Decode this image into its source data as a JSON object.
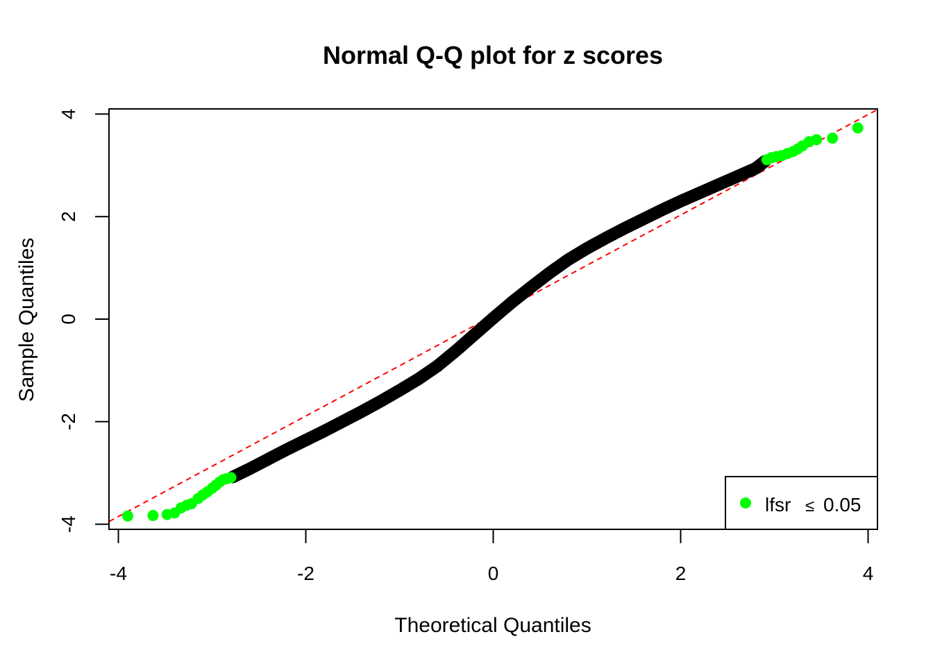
{
  "chart_data": {
    "type": "scatter",
    "title": "Normal Q-Q plot for z scores",
    "xlabel": "Theoretical Quantiles",
    "ylabel": "Sample Quantiles",
    "xlim": [
      -4.1,
      4.1
    ],
    "ylim": [
      -4.1,
      4.1
    ],
    "x_ticks": [
      -4,
      -2,
      0,
      2,
      4
    ],
    "y_ticks": [
      -4,
      -2,
      0,
      2,
      4
    ],
    "x_tick_labels": [
      "-4",
      "-2",
      "0",
      "2",
      "4"
    ],
    "y_tick_labels": [
      "-4",
      "-2",
      "0",
      "2",
      "4"
    ],
    "grid": false,
    "colors": {
      "points": "#000000",
      "highlight": "#00ff00",
      "reference_line": "#ff0000"
    },
    "reference_line": {
      "style": "dashed",
      "intercept": 0.07,
      "slope": 0.98
    },
    "sample_curve": [
      [
        -2.78,
        -3.08
      ],
      [
        -2.6,
        -2.92
      ],
      [
        -2.4,
        -2.73
      ],
      [
        -2.2,
        -2.54
      ],
      [
        -2.0,
        -2.36
      ],
      [
        -1.8,
        -2.18
      ],
      [
        -1.6,
        -1.99
      ],
      [
        -1.4,
        -1.8
      ],
      [
        -1.2,
        -1.6
      ],
      [
        -1.0,
        -1.39
      ],
      [
        -0.8,
        -1.17
      ],
      [
        -0.6,
        -0.92
      ],
      [
        -0.4,
        -0.62
      ],
      [
        -0.2,
        -0.3
      ],
      [
        0.0,
        0.02
      ],
      [
        0.2,
        0.33
      ],
      [
        0.4,
        0.62
      ],
      [
        0.6,
        0.9
      ],
      [
        0.8,
        1.16
      ],
      [
        1.0,
        1.38
      ],
      [
        1.2,
        1.58
      ],
      [
        1.4,
        1.77
      ],
      [
        1.6,
        1.95
      ],
      [
        1.8,
        2.13
      ],
      [
        2.0,
        2.3
      ],
      [
        2.2,
        2.46
      ],
      [
        2.4,
        2.62
      ],
      [
        2.6,
        2.78
      ],
      [
        2.8,
        2.94
      ],
      [
        2.9,
        3.08
      ]
    ],
    "highlight_points": [
      [
        -3.9,
        -3.84
      ],
      [
        -3.63,
        -3.83
      ],
      [
        -3.48,
        -3.81
      ],
      [
        -3.4,
        -3.78
      ],
      [
        -3.33,
        -3.68
      ],
      [
        -3.27,
        -3.63
      ],
      [
        -3.22,
        -3.6
      ],
      [
        -3.15,
        -3.5
      ],
      [
        -3.1,
        -3.43
      ],
      [
        -3.05,
        -3.37
      ],
      [
        -3.0,
        -3.3
      ],
      [
        -2.96,
        -3.24
      ],
      [
        -2.92,
        -3.18
      ],
      [
        -2.88,
        -3.13
      ],
      [
        -2.84,
        -3.11
      ],
      [
        -2.8,
        -3.09
      ],
      [
        2.92,
        3.11
      ],
      [
        2.97,
        3.15
      ],
      [
        3.02,
        3.17
      ],
      [
        3.08,
        3.19
      ],
      [
        3.14,
        3.23
      ],
      [
        3.2,
        3.27
      ],
      [
        3.25,
        3.32
      ],
      [
        3.3,
        3.38
      ],
      [
        3.37,
        3.46
      ],
      [
        3.45,
        3.5
      ],
      [
        3.62,
        3.53
      ],
      [
        3.89,
        3.73
      ]
    ],
    "legend": {
      "position": "bottom-right",
      "label": "lfsr",
      "symbol": "≤",
      "value": "0.05"
    }
  }
}
